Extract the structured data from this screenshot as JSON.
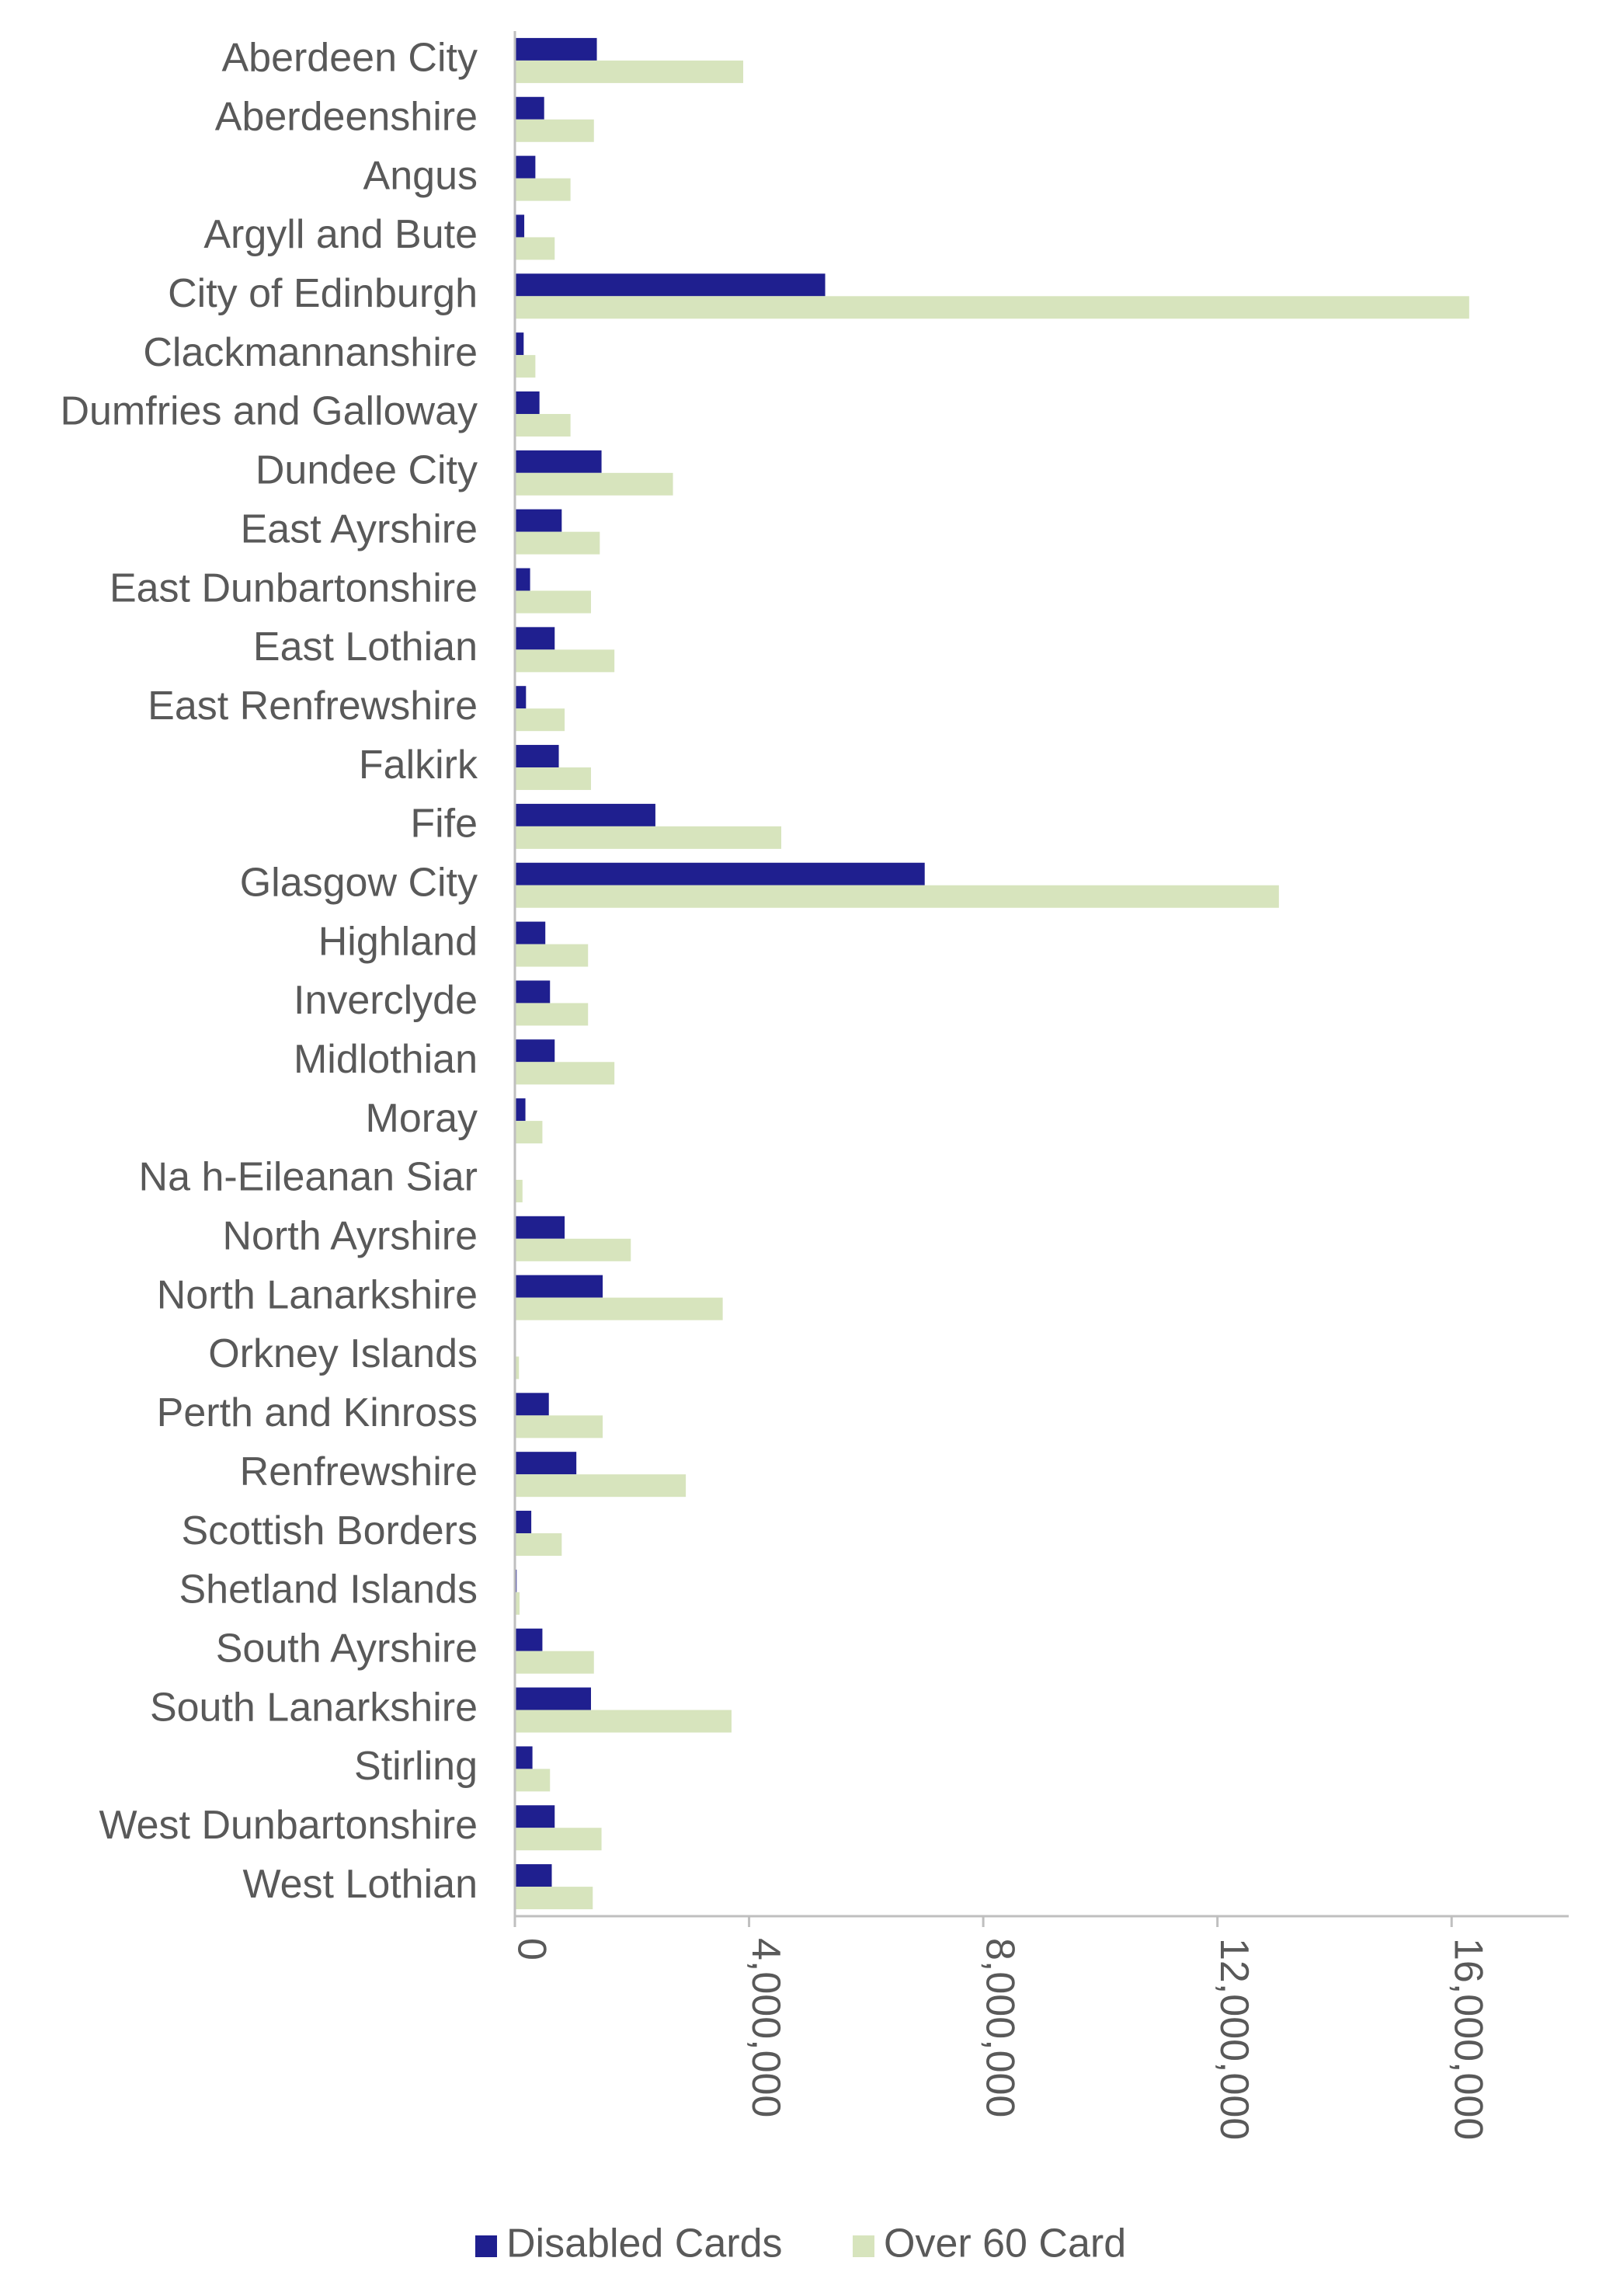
{
  "chart_data": {
    "type": "bar",
    "orientation": "horizontal",
    "categories": [
      "Aberdeen City",
      "Aberdeenshire",
      "Angus",
      "Argyll and Bute",
      "City of Edinburgh",
      "Clackmannanshire",
      "Dumfries and Galloway",
      "Dundee City",
      "East Ayrshire",
      "East Dunbartonshire",
      "East Lothian",
      "East Renfrewshire",
      "Falkirk",
      "Fife",
      "Glasgow City",
      "Highland",
      "Inverclyde",
      "Midlothian",
      "Moray",
      "Na h-Eileanan Siar",
      "North Ayrshire",
      "North Lanarkshire",
      "Orkney Islands",
      "Perth and Kinross",
      "Renfrewshire",
      "Scottish Borders",
      "Shetland Islands",
      "South Ayrshire",
      "South Lanarkshire",
      "Stirling",
      "West Dunbartonshire",
      "West Lothian"
    ],
    "series": [
      {
        "name": "Disabled Cards",
        "color": "#1f1f8f",
        "values": [
          1400000,
          500000,
          350000,
          160000,
          5300000,
          150000,
          420000,
          1480000,
          800000,
          260000,
          680000,
          190000,
          750000,
          2400000,
          7000000,
          520000,
          600000,
          680000,
          180000,
          10000,
          850000,
          1500000,
          20000,
          580000,
          1050000,
          280000,
          30000,
          470000,
          1300000,
          300000,
          680000,
          630000
        ]
      },
      {
        "name": "Over 60 Card",
        "color": "#d7e4bd",
        "values": [
          3900000,
          1350000,
          950000,
          680000,
          16300000,
          350000,
          950000,
          2700000,
          1450000,
          1300000,
          1700000,
          850000,
          1300000,
          4550000,
          13050000,
          1250000,
          1250000,
          1700000,
          470000,
          130000,
          1980000,
          3550000,
          70000,
          1500000,
          2920000,
          800000,
          80000,
          1350000,
          3700000,
          600000,
          1480000,
          1330000
        ]
      }
    ],
    "xlim": [
      0,
      18000000
    ],
    "xticks": [
      0,
      4000000,
      8000000,
      12000000,
      16000000
    ],
    "xtick_labels": [
      "0",
      "4,000,000",
      "8,000,000",
      "12,000,000",
      "16,000,000"
    ],
    "gridlines": false,
    "legend_position": "bottom",
    "title": "",
    "xlabel": "",
    "ylabel": ""
  }
}
